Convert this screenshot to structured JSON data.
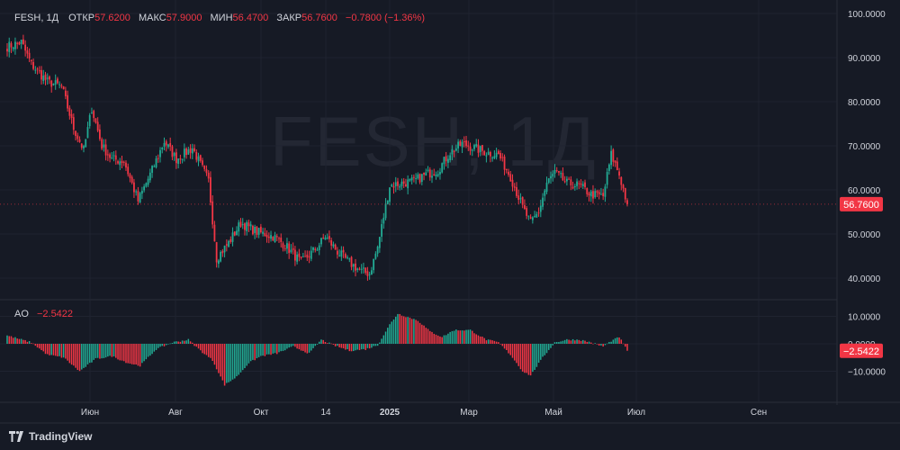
{
  "legend": {
    "symbol": "FESH, 1Д",
    "open_label": "ОТКР",
    "open": "57.6200",
    "high_label": "МАКС",
    "high": "57.9000",
    "low_label": "МИН",
    "low": "56.4700",
    "close_label": "ЗАКР",
    "close": "56.7600",
    "change": "−0.7800 (−1.36%)"
  },
  "watermark": "FESH, 1Д",
  "ao_legend": {
    "name": "AO",
    "value": "−2.5422"
  },
  "price_badge": "56.7600",
  "ao_badge": "−2.5422",
  "brand": "TradingView",
  "colors": {
    "up": "#22ab94",
    "down": "#f23645",
    "background": "#161a25",
    "grid": "#1f2330",
    "axis_text": "#d1d4dc",
    "badge": "#f23645"
  },
  "chart_data": [
    {
      "type": "candlestick",
      "title": "FESH, 1Д",
      "y_axis_ticks": [
        "100.0000",
        "90.0000",
        "80.0000",
        "70.0000",
        "60.0000",
        "50.0000",
        "40.0000"
      ],
      "ylim": [
        37,
        101
      ],
      "x_axis_ticks": [
        "Июн",
        "Авг",
        "Окт",
        "14",
        "2025",
        "Мар",
        "Май",
        "Июл",
        "Сен"
      ],
      "last_value": 56.76,
      "keypoints": [
        {
          "i": 0,
          "v": 92.5
        },
        {
          "i": 7,
          "v": 93.5
        },
        {
          "i": 12,
          "v": 88.5
        },
        {
          "i": 20,
          "v": 84.5
        },
        {
          "i": 27,
          "v": 83.5
        },
        {
          "i": 33,
          "v": 74.0
        },
        {
          "i": 38,
          "v": 69.0
        },
        {
          "i": 42,
          "v": 78.5
        },
        {
          "i": 47,
          "v": 70.0
        },
        {
          "i": 52,
          "v": 67.0
        },
        {
          "i": 58,
          "v": 66.5
        },
        {
          "i": 65,
          "v": 57.5
        },
        {
          "i": 72,
          "v": 64.5
        },
        {
          "i": 78,
          "v": 71.0
        },
        {
          "i": 84,
          "v": 67.0
        },
        {
          "i": 92,
          "v": 69.5
        },
        {
          "i": 100,
          "v": 62.0
        },
        {
          "i": 104,
          "v": 44.5
        },
        {
          "i": 110,
          "v": 48.0
        },
        {
          "i": 116,
          "v": 52.5
        },
        {
          "i": 124,
          "v": 50.5
        },
        {
          "i": 132,
          "v": 49.5
        },
        {
          "i": 138,
          "v": 47.5
        },
        {
          "i": 146,
          "v": 43.5
        },
        {
          "i": 154,
          "v": 47.0
        },
        {
          "i": 158,
          "v": 49.5
        },
        {
          "i": 164,
          "v": 46.0
        },
        {
          "i": 170,
          "v": 43.5
        },
        {
          "i": 176,
          "v": 41.5
        },
        {
          "i": 180,
          "v": 41.0
        },
        {
          "i": 184,
          "v": 47.0
        },
        {
          "i": 190,
          "v": 61.0
        },
        {
          "i": 196,
          "v": 61.5
        },
        {
          "i": 202,
          "v": 62.0
        },
        {
          "i": 208,
          "v": 63.5
        },
        {
          "i": 214,
          "v": 64.5
        },
        {
          "i": 220,
          "v": 68.5
        },
        {
          "i": 226,
          "v": 70.5
        },
        {
          "i": 232,
          "v": 69.5
        },
        {
          "i": 238,
          "v": 68.5
        },
        {
          "i": 244,
          "v": 68.0
        },
        {
          "i": 250,
          "v": 63.0
        },
        {
          "i": 256,
          "v": 56.0
        },
        {
          "i": 260,
          "v": 52.5
        },
        {
          "i": 264,
          "v": 55.0
        },
        {
          "i": 268,
          "v": 61.5
        },
        {
          "i": 272,
          "v": 64.0
        },
        {
          "i": 278,
          "v": 61.5
        },
        {
          "i": 284,
          "v": 61.0
        },
        {
          "i": 290,
          "v": 59.0
        },
        {
          "i": 296,
          "v": 58.5
        },
        {
          "i": 300,
          "v": 68.0
        },
        {
          "i": 304,
          "v": 63.5
        },
        {
          "i": 308,
          "v": 56.76
        }
      ]
    },
    {
      "type": "bar",
      "title": "AO",
      "y_axis_ticks": [
        "10.0000",
        "0.0000",
        "−10.0000"
      ],
      "ylim": [
        -14,
        13
      ],
      "last_value": -2.5422,
      "keypoints": [
        {
          "i": 0,
          "v": 3.0
        },
        {
          "i": 12,
          "v": 0.5
        },
        {
          "i": 20,
          "v": -4.0
        },
        {
          "i": 28,
          "v": -5.0
        },
        {
          "i": 36,
          "v": -10.0
        },
        {
          "i": 44,
          "v": -5.5
        },
        {
          "i": 52,
          "v": -4.5
        },
        {
          "i": 60,
          "v": -7.0
        },
        {
          "i": 66,
          "v": -8.0
        },
        {
          "i": 74,
          "v": -2.0
        },
        {
          "i": 82,
          "v": 0.5
        },
        {
          "i": 90,
          "v": 1.5
        },
        {
          "i": 96,
          "v": -2.5
        },
        {
          "i": 102,
          "v": -6.0
        },
        {
          "i": 108,
          "v": -15.0
        },
        {
          "i": 114,
          "v": -12.0
        },
        {
          "i": 120,
          "v": -7.0
        },
        {
          "i": 126,
          "v": -4.5
        },
        {
          "i": 134,
          "v": -3.5
        },
        {
          "i": 142,
          "v": -1.0
        },
        {
          "i": 150,
          "v": -3.5
        },
        {
          "i": 156,
          "v": 1.5
        },
        {
          "i": 162,
          "v": -0.5
        },
        {
          "i": 170,
          "v": -2.5
        },
        {
          "i": 178,
          "v": -2.0
        },
        {
          "i": 184,
          "v": -0.5
        },
        {
          "i": 190,
          "v": 7.0
        },
        {
          "i": 194,
          "v": 11.0
        },
        {
          "i": 198,
          "v": 10.0
        },
        {
          "i": 204,
          "v": 8.5
        },
        {
          "i": 210,
          "v": 4.5
        },
        {
          "i": 216,
          "v": 2.5
        },
        {
          "i": 222,
          "v": 5.0
        },
        {
          "i": 230,
          "v": 5.0
        },
        {
          "i": 238,
          "v": 1.5
        },
        {
          "i": 244,
          "v": 0.5
        },
        {
          "i": 250,
          "v": -4.0
        },
        {
          "i": 256,
          "v": -10.0
        },
        {
          "i": 260,
          "v": -11.5
        },
        {
          "i": 266,
          "v": -5.0
        },
        {
          "i": 272,
          "v": 0.5
        },
        {
          "i": 278,
          "v": 1.5
        },
        {
          "i": 284,
          "v": 1.5
        },
        {
          "i": 290,
          "v": 0.5
        },
        {
          "i": 296,
          "v": -1.0
        },
        {
          "i": 300,
          "v": 1.0
        },
        {
          "i": 304,
          "v": 2.5
        },
        {
          "i": 308,
          "v": -2.5422
        }
      ]
    }
  ]
}
